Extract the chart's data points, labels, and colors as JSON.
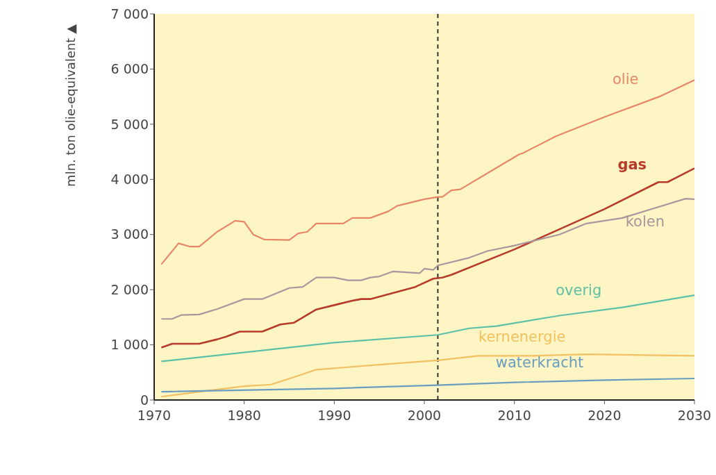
{
  "chart_data": {
    "type": "line",
    "ylabel": "mln. ton olie-equivalent ▲",
    "xlim": [
      1970,
      2030
    ],
    "xticks": [
      1970,
      1980,
      1990,
      2000,
      2010,
      2020,
      2030
    ],
    "ylim": [
      0,
      7000
    ],
    "yticks": [
      {
        "value": 0,
        "label": "0"
      },
      {
        "value": 1000,
        "label": "1 000"
      },
      {
        "value": 2000,
        "label": "2 000"
      },
      {
        "value": 3000,
        "label": "3 000"
      },
      {
        "value": 4000,
        "label": "4 000"
      },
      {
        "value": 5000,
        "label": "5 000"
      },
      {
        "value": 6000,
        "label": "6 000"
      },
      {
        "value": 7000,
        "label": "7 000"
      }
    ],
    "marker": "none",
    "line_style": "solid",
    "ref_lines": [
      {
        "axis": "x",
        "value": 2001.5,
        "color": "#333333",
        "line_style": "dashed"
      }
    ],
    "series": [
      {
        "name": "olie",
        "color": "#e8866a",
        "x": [
          1970.8,
          1972.7,
          1974,
          1975,
          1977,
          1979,
          1980,
          1981,
          1982.2,
          1985,
          1986,
          1987,
          1988,
          1991,
          1992,
          1994,
          1996,
          1997,
          2000,
          2001.5,
          2002,
          2003,
          2004,
          2010.5,
          2011,
          2014.6,
          2020,
          2026.1,
          2030
        ],
        "values": [
          2460,
          2840,
          2780,
          2780,
          3050,
          3250,
          3230,
          3000,
          2910,
          2900,
          3020,
          3050,
          3200,
          3200,
          3300,
          3300,
          3420,
          3520,
          3640,
          3680,
          3680,
          3800,
          3820,
          4450,
          4480,
          4780,
          5130,
          5500,
          5800
        ]
      },
      {
        "name": "gas",
        "color": "#b83a2a",
        "x": [
          1970.8,
          1972,
          1975,
          1977,
          1978,
          1979.5,
          1982,
          1984,
          1985.5,
          1988,
          1990,
          1992,
          1993,
          1994,
          1997,
          1999,
          2001,
          2002,
          2003,
          2010,
          2020,
          2026,
          2027,
          2030
        ],
        "values": [
          950,
          1020,
          1020,
          1100,
          1150,
          1240,
          1240,
          1370,
          1400,
          1640,
          1720,
          1800,
          1830,
          1830,
          1960,
          2050,
          2200,
          2220,
          2270,
          2730,
          3460,
          3950,
          3950,
          4200
        ]
      },
      {
        "name": "kolen",
        "color": "#a8969e",
        "x": [
          1970.8,
          1972,
          1973,
          1975,
          1977,
          1980,
          1982,
          1985,
          1986.5,
          1988,
          1990,
          1991.5,
          1993,
          1994,
          1995,
          1996.5,
          1999.5,
          2000,
          2001,
          2001.5,
          2005,
          2007,
          2010,
          2015,
          2018,
          2022,
          2025,
          2029,
          2030
        ],
        "values": [
          1470,
          1470,
          1540,
          1550,
          1650,
          1830,
          1830,
          2030,
          2050,
          2220,
          2220,
          2170,
          2170,
          2220,
          2240,
          2330,
          2300,
          2380,
          2360,
          2440,
          2580,
          2700,
          2800,
          3000,
          3200,
          3300,
          3450,
          3650,
          3640
        ]
      },
      {
        "name": "overig",
        "color": "#5cc0a8",
        "x": [
          1970.8,
          1990,
          2001.5,
          2005,
          2008,
          2015,
          2022,
          2030
        ],
        "values": [
          700,
          1040,
          1180,
          1300,
          1340,
          1530,
          1680,
          1900
        ]
      },
      {
        "name": "kernenergie",
        "color": "#f2c060",
        "x": [
          1970.8,
          1975,
          1980,
          1983,
          1986,
          1988,
          1995,
          2001.5,
          2006,
          2012,
          2018,
          2030
        ],
        "values": [
          60,
          150,
          250,
          280,
          440,
          550,
          640,
          720,
          800,
          800,
          830,
          800
        ]
      },
      {
        "name": "waterkracht",
        "color": "#6a9ec0",
        "x": [
          1970.8,
          1990,
          2001.5,
          2010,
          2020,
          2030
        ],
        "values": [
          150,
          210,
          270,
          320,
          360,
          390
        ]
      }
    ]
  }
}
